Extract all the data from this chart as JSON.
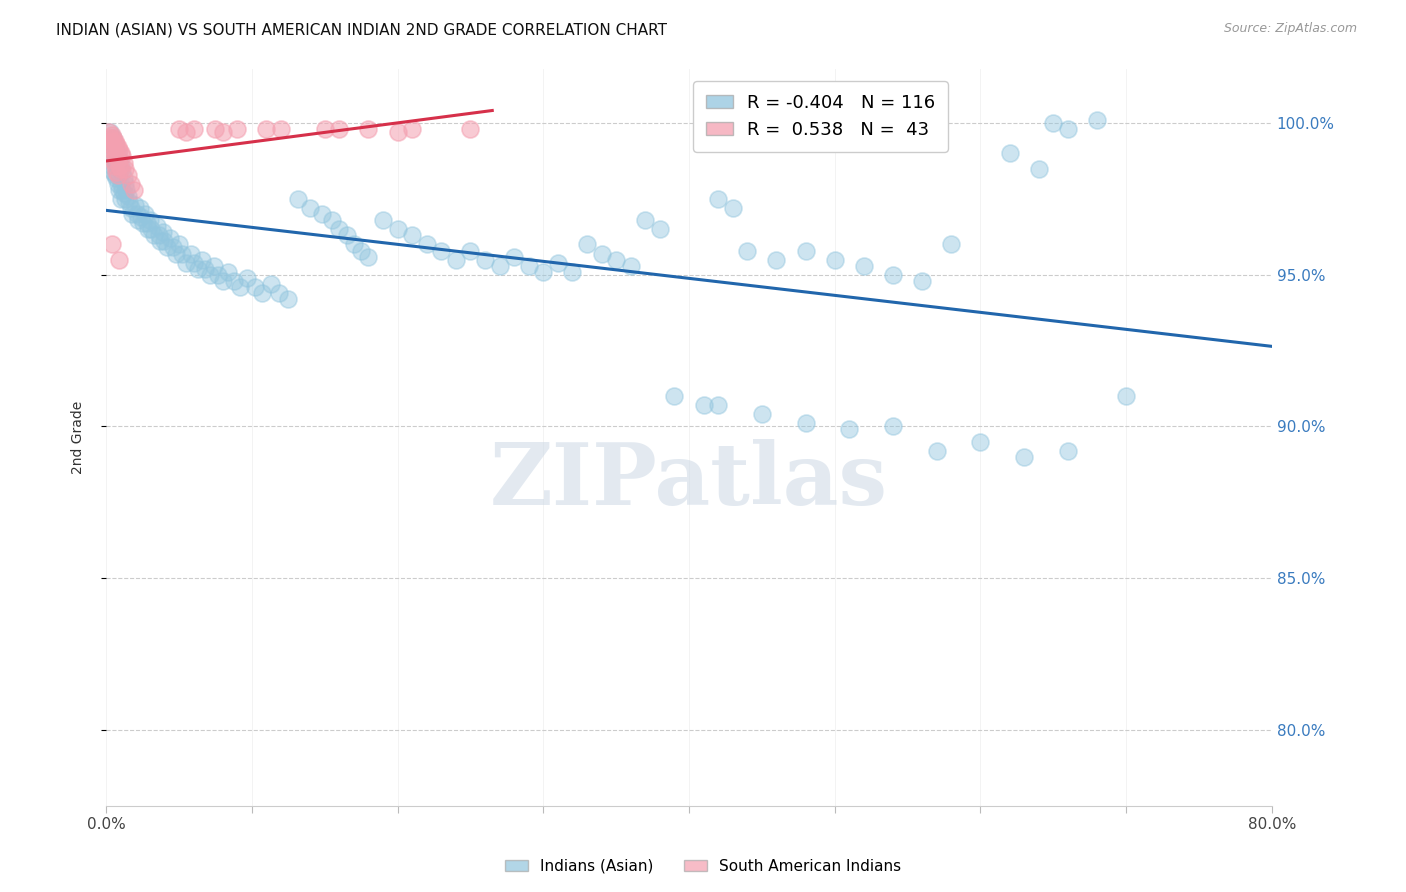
{
  "title": "INDIAN (ASIAN) VS SOUTH AMERICAN INDIAN 2ND GRADE CORRELATION CHART",
  "source": "Source: ZipAtlas.com",
  "ylabel": "2nd Grade",
  "yticks": [
    "80.0%",
    "85.0%",
    "90.0%",
    "95.0%",
    "100.0%"
  ],
  "ytick_values": [
    0.8,
    0.85,
    0.9,
    0.95,
    1.0
  ],
  "xlim": [
    0.0,
    0.8
  ],
  "ylim": [
    0.775,
    1.018
  ],
  "legend_blue_r": "-0.404",
  "legend_blue_n": "116",
  "legend_pink_r": "0.538",
  "legend_pink_n": "43",
  "blue_color": "#92c5de",
  "pink_color": "#f4a0b0",
  "blue_line_color": "#2166ac",
  "pink_line_color": "#d6304a",
  "watermark_text": "ZIPatlas",
  "blue_points": [
    [
      0.003,
      0.997
    ],
    [
      0.004,
      0.992
    ],
    [
      0.004,
      0.986
    ],
    [
      0.005,
      0.995
    ],
    [
      0.005,
      0.99
    ],
    [
      0.005,
      0.984
    ],
    [
      0.006,
      0.993
    ],
    [
      0.006,
      0.988
    ],
    [
      0.006,
      0.983
    ],
    [
      0.007,
      0.991
    ],
    [
      0.007,
      0.987
    ],
    [
      0.007,
      0.982
    ],
    [
      0.008,
      0.99
    ],
    [
      0.008,
      0.985
    ],
    [
      0.008,
      0.98
    ],
    [
      0.009,
      0.988
    ],
    [
      0.009,
      0.983
    ],
    [
      0.009,
      0.978
    ],
    [
      0.01,
      0.986
    ],
    [
      0.01,
      0.98
    ],
    [
      0.01,
      0.975
    ],
    [
      0.011,
      0.984
    ],
    [
      0.011,
      0.978
    ],
    [
      0.012,
      0.982
    ],
    [
      0.012,
      0.977
    ],
    [
      0.013,
      0.98
    ],
    [
      0.013,
      0.975
    ],
    [
      0.014,
      0.978
    ],
    [
      0.015,
      0.976
    ],
    [
      0.016,
      0.974
    ],
    [
      0.017,
      0.972
    ],
    [
      0.018,
      0.97
    ],
    [
      0.02,
      0.973
    ],
    [
      0.021,
      0.97
    ],
    [
      0.022,
      0.968
    ],
    [
      0.023,
      0.972
    ],
    [
      0.024,
      0.969
    ],
    [
      0.025,
      0.967
    ],
    [
      0.027,
      0.97
    ],
    [
      0.028,
      0.967
    ],
    [
      0.029,
      0.965
    ],
    [
      0.03,
      0.968
    ],
    [
      0.031,
      0.965
    ],
    [
      0.033,
      0.963
    ],
    [
      0.035,
      0.966
    ],
    [
      0.036,
      0.963
    ],
    [
      0.037,
      0.961
    ],
    [
      0.039,
      0.964
    ],
    [
      0.04,
      0.961
    ],
    [
      0.042,
      0.959
    ],
    [
      0.044,
      0.962
    ],
    [
      0.046,
      0.959
    ],
    [
      0.048,
      0.957
    ],
    [
      0.05,
      0.96
    ],
    [
      0.052,
      0.957
    ],
    [
      0.055,
      0.954
    ],
    [
      0.058,
      0.957
    ],
    [
      0.06,
      0.954
    ],
    [
      0.063,
      0.952
    ],
    [
      0.066,
      0.955
    ],
    [
      0.068,
      0.952
    ],
    [
      0.071,
      0.95
    ],
    [
      0.074,
      0.953
    ],
    [
      0.077,
      0.95
    ],
    [
      0.08,
      0.948
    ],
    [
      0.084,
      0.951
    ],
    [
      0.088,
      0.948
    ],
    [
      0.092,
      0.946
    ],
    [
      0.097,
      0.949
    ],
    [
      0.102,
      0.946
    ],
    [
      0.107,
      0.944
    ],
    [
      0.113,
      0.947
    ],
    [
      0.119,
      0.944
    ],
    [
      0.125,
      0.942
    ],
    [
      0.132,
      0.975
    ],
    [
      0.14,
      0.972
    ],
    [
      0.148,
      0.97
    ],
    [
      0.155,
      0.968
    ],
    [
      0.16,
      0.965
    ],
    [
      0.165,
      0.963
    ],
    [
      0.17,
      0.96
    ],
    [
      0.175,
      0.958
    ],
    [
      0.18,
      0.956
    ],
    [
      0.19,
      0.968
    ],
    [
      0.2,
      0.965
    ],
    [
      0.21,
      0.963
    ],
    [
      0.22,
      0.96
    ],
    [
      0.23,
      0.958
    ],
    [
      0.24,
      0.955
    ],
    [
      0.25,
      0.958
    ],
    [
      0.26,
      0.955
    ],
    [
      0.27,
      0.953
    ],
    [
      0.28,
      0.956
    ],
    [
      0.29,
      0.953
    ],
    [
      0.3,
      0.951
    ],
    [
      0.31,
      0.954
    ],
    [
      0.32,
      0.951
    ],
    [
      0.33,
      0.96
    ],
    [
      0.34,
      0.957
    ],
    [
      0.35,
      0.955
    ],
    [
      0.36,
      0.953
    ],
    [
      0.37,
      0.968
    ],
    [
      0.38,
      0.965
    ],
    [
      0.42,
      0.975
    ],
    [
      0.43,
      0.972
    ],
    [
      0.44,
      0.958
    ],
    [
      0.46,
      0.955
    ],
    [
      0.48,
      0.958
    ],
    [
      0.5,
      0.955
    ],
    [
      0.52,
      0.953
    ],
    [
      0.54,
      0.95
    ],
    [
      0.56,
      0.948
    ],
    [
      0.58,
      0.96
    ],
    [
      0.62,
      0.99
    ],
    [
      0.64,
      0.985
    ],
    [
      0.65,
      1.0
    ],
    [
      0.66,
      0.998
    ],
    [
      0.68,
      1.001
    ],
    [
      0.42,
      0.907
    ],
    [
      0.45,
      0.904
    ],
    [
      0.48,
      0.901
    ],
    [
      0.51,
      0.899
    ],
    [
      0.54,
      0.9
    ],
    [
      0.57,
      0.892
    ],
    [
      0.6,
      0.895
    ],
    [
      0.63,
      0.89
    ],
    [
      0.66,
      0.892
    ],
    [
      0.7,
      0.91
    ],
    [
      0.39,
      0.91
    ],
    [
      0.41,
      0.907
    ]
  ],
  "pink_points": [
    [
      0.002,
      0.997
    ],
    [
      0.003,
      0.995
    ],
    [
      0.003,
      0.993
    ],
    [
      0.004,
      0.996
    ],
    [
      0.004,
      0.994
    ],
    [
      0.004,
      0.991
    ],
    [
      0.005,
      0.995
    ],
    [
      0.005,
      0.992
    ],
    [
      0.005,
      0.988
    ],
    [
      0.006,
      0.994
    ],
    [
      0.006,
      0.99
    ],
    [
      0.006,
      0.986
    ],
    [
      0.007,
      0.993
    ],
    [
      0.007,
      0.989
    ],
    [
      0.007,
      0.984
    ],
    [
      0.008,
      0.992
    ],
    [
      0.008,
      0.988
    ],
    [
      0.008,
      0.983
    ],
    [
      0.009,
      0.991
    ],
    [
      0.009,
      0.986
    ],
    [
      0.01,
      0.99
    ],
    [
      0.01,
      0.985
    ],
    [
      0.011,
      0.989
    ],
    [
      0.012,
      0.987
    ],
    [
      0.013,
      0.985
    ],
    [
      0.015,
      0.983
    ],
    [
      0.017,
      0.98
    ],
    [
      0.019,
      0.978
    ],
    [
      0.05,
      0.998
    ],
    [
      0.055,
      0.997
    ],
    [
      0.06,
      0.998
    ],
    [
      0.075,
      0.998
    ],
    [
      0.08,
      0.997
    ],
    [
      0.09,
      0.998
    ],
    [
      0.11,
      0.998
    ],
    [
      0.12,
      0.998
    ],
    [
      0.15,
      0.998
    ],
    [
      0.16,
      0.998
    ],
    [
      0.18,
      0.998
    ],
    [
      0.2,
      0.997
    ],
    [
      0.21,
      0.998
    ],
    [
      0.25,
      0.998
    ],
    [
      0.004,
      0.96
    ],
    [
      0.009,
      0.955
    ]
  ]
}
